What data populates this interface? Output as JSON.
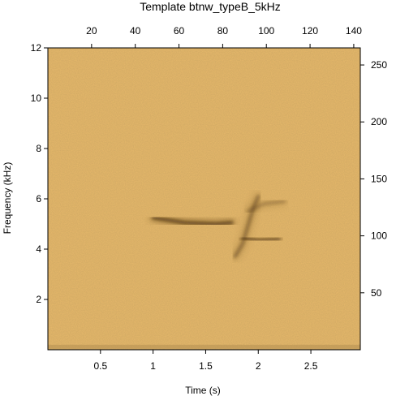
{
  "chart_data": {
    "type": "heatmap",
    "title": "Template btnw_typeB_5kHz",
    "xlabel": "Time (s)",
    "ylabel": "Frequency (kHz)",
    "xlim": [
      0,
      2.97
    ],
    "ylim": [
      0,
      12
    ],
    "x_ticks": [
      0.5,
      1,
      1.5,
      2,
      2.5
    ],
    "x_tick_labels": [
      "0.5",
      "1",
      "1.5",
      "2",
      "2.5"
    ],
    "y_ticks": [
      2,
      4,
      6,
      8,
      10,
      12
    ],
    "y_tick_labels": [
      "2",
      "4",
      "6",
      "8",
      "10",
      "12"
    ],
    "top_axis": {
      "range": [
        0,
        143
      ],
      "ticks": [
        20,
        40,
        60,
        80,
        100,
        120,
        140
      ],
      "tick_labels": [
        "20",
        "40",
        "60",
        "80",
        "100",
        "120",
        "140"
      ]
    },
    "right_axis": {
      "range": [
        0,
        265
      ],
      "ticks": [
        50,
        100,
        150,
        200,
        250
      ],
      "tick_labels": [
        "50",
        "100",
        "150",
        "200",
        "250"
      ]
    },
    "colors": {
      "background": "#e8b96a",
      "low_band": "#b58f52",
      "signal": "#4a2f0c"
    },
    "signal_strokes": [
      {
        "points": [
          [
            1.0,
            5.25
          ],
          [
            1.3,
            5.05
          ],
          [
            1.6,
            5.0
          ],
          [
            1.75,
            5.05
          ]
        ],
        "intensity": 0.9
      },
      {
        "points": [
          [
            1.85,
            4.45
          ],
          [
            2.0,
            4.35
          ],
          [
            2.2,
            4.4
          ]
        ],
        "intensity": 0.7
      },
      {
        "points": [
          [
            1.78,
            3.7
          ],
          [
            1.85,
            4.2
          ],
          [
            1.9,
            4.9
          ],
          [
            1.95,
            5.6
          ],
          [
            2.0,
            6.1
          ]
        ],
        "intensity": 0.55
      },
      {
        "points": [
          [
            1.9,
            5.5
          ],
          [
            2.05,
            5.8
          ],
          [
            2.25,
            5.9
          ]
        ],
        "intensity": 0.35
      }
    ]
  }
}
